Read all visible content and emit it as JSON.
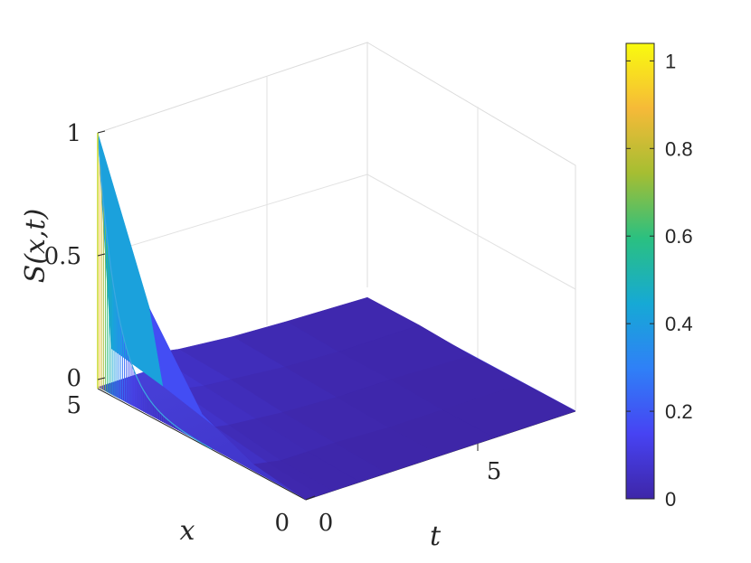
{
  "chart_data": {
    "type": "surface",
    "zlabel": "S(x,t)",
    "xlabel": "x",
    "ylabel": "t",
    "x_ticks": [
      "0",
      "5"
    ],
    "t_ticks": [
      "0",
      "5"
    ],
    "z_ticks": [
      "0",
      "0.5",
      "1"
    ],
    "x_range": [
      0,
      5
    ],
    "t_range": [
      0,
      10
    ],
    "z_range": [
      0,
      1
    ],
    "x_grid": [
      5,
      3.75,
      2.5,
      1.25,
      0
    ],
    "t_grid": [
      0,
      0.5,
      1,
      2,
      3,
      5,
      7,
      10
    ],
    "surface_values": [
      [
        1.0,
        0.14,
        0.1,
        0.07,
        0.05,
        0.03,
        0.02,
        0.01
      ],
      [
        0.42,
        0.1,
        0.07,
        0.05,
        0.04,
        0.02,
        0.01,
        0.01
      ],
      [
        0.12,
        0.05,
        0.04,
        0.03,
        0.02,
        0.01,
        0.01,
        0.0
      ],
      [
        0.03,
        0.02,
        0.01,
        0.01,
        0.01,
        0.0,
        0.0,
        0.0
      ],
      [
        0.0,
        0.0,
        0.0,
        0.0,
        0.0,
        0.0,
        0.0,
        0.0
      ]
    ],
    "colorbar": {
      "range": [
        0,
        1.04
      ],
      "ticks": [
        "0",
        "0.2",
        "0.4",
        "0.6",
        "0.8",
        "1"
      ],
      "colormap": "parula",
      "colors": [
        "#3e26a8",
        "#4743f3",
        "#2f80f7",
        "#16a9d5",
        "#2ac081",
        "#a5be32",
        "#f6ba38",
        "#f9fb0e"
      ]
    },
    "grid": true
  }
}
